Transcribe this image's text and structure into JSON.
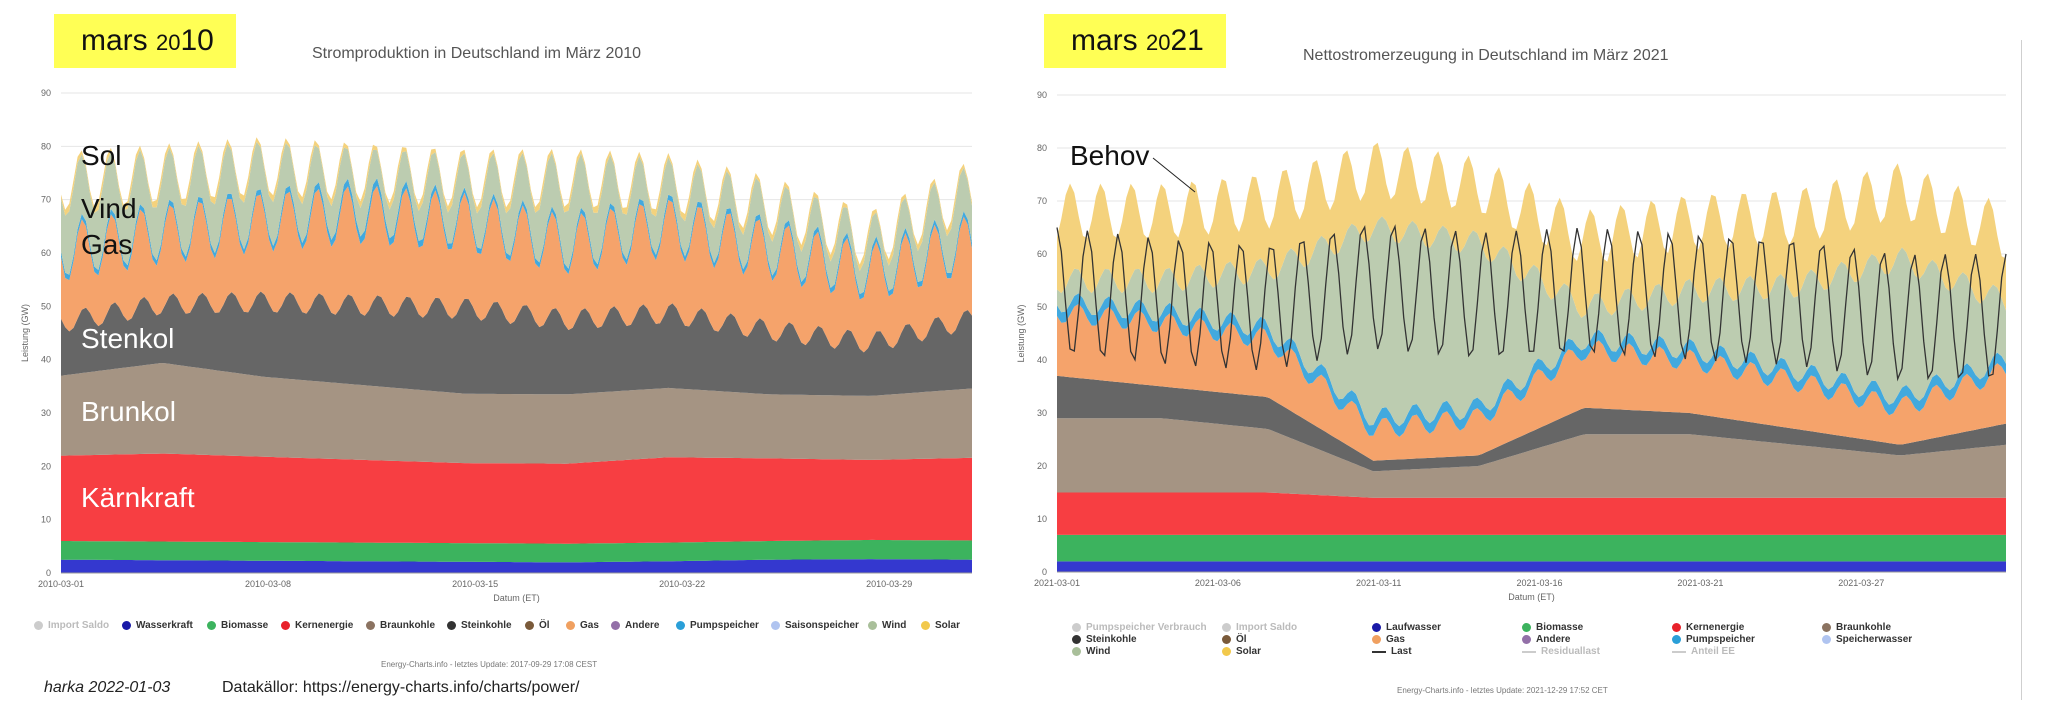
{
  "left": {
    "highlight": "mars 2010",
    "title": "Stromproduktion in Deutschland im März 2010",
    "overlay_labels": [
      "Sol",
      "Vind",
      "Gas",
      "Stenkol",
      "Brunkol",
      "Kärnkraft"
    ],
    "legend": [
      {
        "label": "Import Saldo",
        "color": "#cccccc",
        "dim": true
      },
      {
        "label": "Wasserkraft",
        "color": "#1a1aa8",
        "dim": false
      },
      {
        "label": "Biomasse",
        "color": "#3cb35e",
        "dim": false
      },
      {
        "label": "Kernenergie",
        "color": "#e8212a",
        "dim": false
      },
      {
        "label": "Braunkohle",
        "color": "#8b7361",
        "dim": false
      },
      {
        "label": "Steinkohle",
        "color": "#333333",
        "dim": false
      },
      {
        "label": "Öl",
        "color": "#7a5a3a",
        "dim": false
      },
      {
        "label": "Gas",
        "color": "#f0a060",
        "dim": false
      },
      {
        "label": "Andere",
        "color": "#9370a8",
        "dim": false
      },
      {
        "label": "Pumpspeicher",
        "color": "#2a9fd8",
        "dim": false
      },
      {
        "label": "Saisonspeicher",
        "color": "#b0c4f0",
        "dim": false
      },
      {
        "label": "Wind",
        "color": "#a9bf9a",
        "dim": false
      },
      {
        "label": "Solar",
        "color": "#f2c94c",
        "dim": false
      }
    ],
    "credit": "Energy-Charts.info - letztes Update: 2017-09-29 17:08 CEST",
    "chart_data": {
      "type": "area",
      "title": "Stromproduktion in Deutschland im März 2010",
      "xlabel": "Datum (ET)",
      "ylabel": "Leistung (GW)",
      "ylim": [
        0,
        90
      ],
      "yticks": [
        0,
        10,
        20,
        30,
        40,
        50,
        60,
        70,
        80,
        90
      ],
      "xticks": [
        "2010-03-01",
        "2010-03-08",
        "2010-03-15",
        "2010-03-22",
        "2010-03-29"
      ],
      "series": [
        {
          "name": "Wasserkraft",
          "color": "#3438cf",
          "values": [
            2.5,
            2.4,
            2.3,
            2.2,
            2.1,
            2.0,
            2.2,
            2.5,
            2.6,
            2.5
          ]
        },
        {
          "name": "Biomasse",
          "color": "#3cb35e",
          "values": [
            3.5,
            3.5,
            3.5,
            3.5,
            3.5,
            3.5,
            3.5,
            3.5,
            3.6,
            3.6
          ]
        },
        {
          "name": "Kernenergie",
          "color": "#f73e42",
          "values": [
            16,
            16.5,
            16,
            15.5,
            15,
            15,
            16,
            15.5,
            15,
            15.5
          ]
        },
        {
          "name": "Braunkohle",
          "color": "#a59483",
          "values": [
            15,
            17,
            15,
            14,
            13,
            13,
            13,
            12,
            12,
            13
          ]
        },
        {
          "name": "Steinkohle",
          "color": "#666666",
          "values": [
            8,
            9,
            12,
            13,
            14,
            12,
            12,
            10,
            8,
            11
          ]
        },
        {
          "name": "Gas",
          "color": "#f5a36b",
          "values": [
            9,
            9,
            11,
            13,
            12,
            10,
            12,
            11,
            9,
            10
          ]
        },
        {
          "name": "Pumpspeicher",
          "color": "#42a9de",
          "values": [
            1,
            1,
            1,
            1.5,
            1,
            1,
            1,
            1,
            1,
            1
          ]
        },
        {
          "name": "Wind",
          "color": "#bcccb0",
          "values": [
            10,
            8,
            7,
            4,
            5,
            9,
            5,
            5,
            3,
            7
          ]
        },
        {
          "name": "Solar",
          "color": "#f4d27d",
          "values": [
            0.5,
            0.5,
            0.5,
            0.5,
            0.5,
            0.5,
            0.5,
            0.5,
            0.5,
            0.5
          ]
        }
      ]
    }
  },
  "right": {
    "highlight": "mars 2021",
    "title": "Nettostromerzeugung in Deutschland im März 2021",
    "overlay_labels": [
      "Behov"
    ],
    "legend": [
      {
        "label": "Pumpspeicher Verbrauch",
        "color": "#cccccc",
        "dim": true
      },
      {
        "label": "Import Saldo",
        "color": "#cccccc",
        "dim": true
      },
      {
        "label": "Laufwasser",
        "color": "#1a1aa8",
        "dim": false
      },
      {
        "label": "Biomasse",
        "color": "#3cb35e",
        "dim": false
      },
      {
        "label": "Kernenergie",
        "color": "#e8212a",
        "dim": false
      },
      {
        "label": "Braunkohle",
        "color": "#8b7361",
        "dim": false
      },
      {
        "label": "Steinkohle",
        "color": "#333333",
        "dim": false
      },
      {
        "label": "Öl",
        "color": "#7a5a3a",
        "dim": false
      },
      {
        "label": "Gas",
        "color": "#f0a060",
        "dim": false
      },
      {
        "label": "Andere",
        "color": "#9370a8",
        "dim": false
      },
      {
        "label": "Pumpspeicher",
        "color": "#2a9fd8",
        "dim": false
      },
      {
        "label": "Speicherwasser",
        "color": "#b0c4f0",
        "dim": false
      },
      {
        "label": "Wind",
        "color": "#a9bf9a",
        "dim": false
      },
      {
        "label": "Solar",
        "color": "#f2c94c",
        "dim": false
      },
      {
        "label": "Last",
        "color": "#333333",
        "dim": false,
        "line": true
      },
      {
        "label": "Residuallast",
        "color": "#cccccc",
        "dim": true,
        "line": true
      },
      {
        "label": "Anteil EE",
        "color": "#cccccc",
        "dim": true,
        "line": true
      }
    ],
    "credit": "Energy-Charts.info - letztes Update: 2021-12-29 17:52 CET",
    "chart_data": {
      "type": "area",
      "title": "Nettostromerzeugung in Deutschland im März 2021",
      "xlabel": "Datum (ET)",
      "ylabel": "Leistung (GW)",
      "ylim": [
        0,
        90
      ],
      "yticks": [
        0,
        10,
        20,
        30,
        40,
        50,
        60,
        70,
        80,
        90
      ],
      "xticks": [
        "2021-03-01",
        "2021-03-06",
        "2021-03-11",
        "2021-03-16",
        "2021-03-21",
        "2021-03-27"
      ],
      "series": [
        {
          "name": "Laufwasser",
          "color": "#3438cf",
          "values": [
            2,
            2,
            2,
            2,
            2,
            2,
            2,
            2,
            2,
            2
          ]
        },
        {
          "name": "Biomasse",
          "color": "#3cb35e",
          "values": [
            5,
            5,
            5,
            5,
            5,
            5,
            5,
            5,
            5,
            5
          ]
        },
        {
          "name": "Kernenergie",
          "color": "#f73e42",
          "values": [
            8,
            8,
            8,
            7,
            7,
            7,
            7,
            7,
            7,
            7
          ]
        },
        {
          "name": "Braunkohle",
          "color": "#a59483",
          "values": [
            14,
            14,
            12,
            5,
            6,
            12,
            12,
            10,
            8,
            10
          ]
        },
        {
          "name": "Steinkohle",
          "color": "#666666",
          "values": [
            8,
            6,
            6,
            2,
            2,
            5,
            4,
            3,
            2,
            4
          ]
        },
        {
          "name": "Gas",
          "color": "#f5a36b",
          "values": [
            10,
            10,
            9,
            4,
            5,
            9,
            8,
            7,
            5,
            8
          ]
        },
        {
          "name": "Pumpspeicher",
          "color": "#42a9de",
          "values": [
            2,
            2,
            2,
            2,
            2,
            2,
            2,
            2,
            2,
            2
          ]
        },
        {
          "name": "Wind",
          "color": "#bcccb0",
          "values": [
            3,
            5,
            10,
            35,
            30,
            5,
            10,
            15,
            25,
            10
          ]
        },
        {
          "name": "Solar",
          "color": "#f4d27d",
          "values": [
            8,
            8,
            8,
            6,
            6,
            8,
            8,
            8,
            8,
            8
          ]
        }
      ],
      "load": {
        "name": "Last",
        "values": [
          65,
          63,
          62,
          66,
          64,
          65,
          64,
          63,
          60,
          60
        ]
      }
    }
  },
  "footer": {
    "author": "harka 2022-01-03",
    "source": "Datakällor: https://energy-charts.info/charts/power/"
  }
}
